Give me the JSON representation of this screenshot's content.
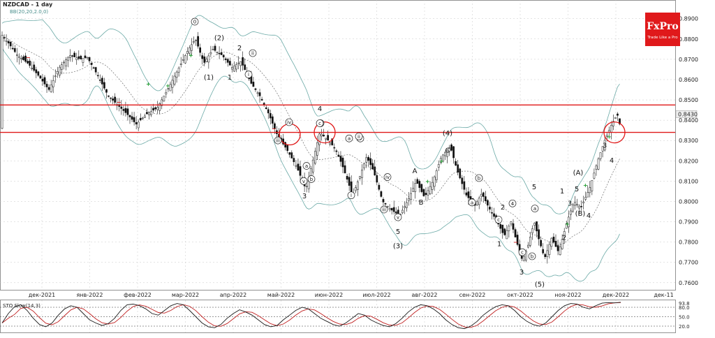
{
  "header": {
    "symbol_title": "NZDCAD - 1 day",
    "indicator_label": "BB(20,20,2.0,0)"
  },
  "logo": {
    "brand": "FxPro",
    "tagline": "Trade Like a Pro",
    "bg_color": "#e0191b"
  },
  "price_axis": {
    "ticks": [
      "0.8900",
      "0.8800",
      "0.8700",
      "0.8600",
      "0.8500",
      "0.8400",
      "0.8300",
      "0.8200",
      "0.8100",
      "0.8000",
      "0.7900",
      "0.7800",
      "0.7700",
      "0.7600"
    ],
    "current_price": "0.8430"
  },
  "time_axis": {
    "labels": [
      "дек-2021",
      "янв-2022",
      "фев-2022",
      "мар-2022",
      "апр-2022",
      "май-2022",
      "июн-2022",
      "июл-2022",
      "авг-2022",
      "сен-2022",
      "окт-2022",
      "ноя-2022",
      "дек-2022",
      "дек-11"
    ]
  },
  "stoch": {
    "label": "STO Slow(14,3)",
    "ticks": [
      "93.8",
      "80.0",
      "50.0",
      "20.0"
    ]
  },
  "colors": {
    "bull_marker": "#1a9a2a",
    "bear_marker": "#d32020",
    "level_line": "#e01818",
    "bollinger": "#6aa9a6",
    "grid": "#c8c8c8",
    "stoch_k": "#1a1a1a",
    "stoch_d": "#c02020"
  },
  "chart_data": {
    "type": "candlestick",
    "instrument": "NZDCAD",
    "timeframe": "1 day",
    "ylim": [
      0.7565,
      0.8985
    ],
    "horizontal_levels": [
      0.8475,
      0.834
    ],
    "circle_markers": [
      {
        "date": "май-2022",
        "price": 0.833
      },
      {
        "date": "май-2022 / июн-2022",
        "price": 0.834
      },
      {
        "date": "ноя-2022",
        "price": 0.834
      }
    ],
    "price_path": [
      [
        0,
        0.883
      ],
      [
        12,
        0.878
      ],
      [
        25,
        0.872
      ],
      [
        40,
        0.868
      ],
      [
        55,
        0.862
      ],
      [
        70,
        0.855
      ],
      [
        85,
        0.866
      ],
      [
        100,
        0.872
      ],
      [
        115,
        0.87
      ],
      [
        125,
        0.871
      ],
      [
        140,
        0.862
      ],
      [
        155,
        0.852
      ],
      [
        170,
        0.847
      ],
      [
        185,
        0.842
      ],
      [
        195,
        0.838
      ],
      [
        210,
        0.843
      ],
      [
        225,
        0.846
      ],
      [
        240,
        0.855
      ],
      [
        255,
        0.865
      ],
      [
        270,
        0.875
      ],
      [
        280,
        0.88
      ],
      [
        292,
        0.868
      ],
      [
        305,
        0.875
      ],
      [
        318,
        0.872
      ],
      [
        332,
        0.866
      ],
      [
        345,
        0.869
      ],
      [
        360,
        0.858
      ],
      [
        372,
        0.852
      ],
      [
        385,
        0.843
      ],
      [
        398,
        0.832
      ],
      [
        410,
        0.826
      ],
      [
        425,
        0.817
      ],
      [
        438,
        0.806
      ],
      [
        448,
        0.82
      ],
      [
        458,
        0.834
      ],
      [
        470,
        0.83
      ],
      [
        480,
        0.826
      ],
      [
        490,
        0.818
      ],
      [
        505,
        0.803
      ],
      [
        515,
        0.812
      ],
      [
        525,
        0.822
      ],
      [
        535,
        0.815
      ],
      [
        548,
        0.8
      ],
      [
        560,
        0.796
      ],
      [
        572,
        0.793
      ],
      [
        585,
        0.801
      ],
      [
        596,
        0.81
      ],
      [
        608,
        0.802
      ],
      [
        620,
        0.81
      ],
      [
        632,
        0.822
      ],
      [
        645,
        0.827
      ],
      [
        655,
        0.815
      ],
      [
        668,
        0.803
      ],
      [
        680,
        0.798
      ],
      [
        690,
        0.804
      ],
      [
        700,
        0.797
      ],
      [
        712,
        0.79
      ],
      [
        722,
        0.783
      ],
      [
        732,
        0.79
      ],
      [
        740,
        0.78
      ],
      [
        748,
        0.771
      ],
      [
        756,
        0.778
      ],
      [
        765,
        0.79
      ],
      [
        772,
        0.781
      ],
      [
        780,
        0.772
      ],
      [
        790,
        0.782
      ],
      [
        800,
        0.775
      ],
      [
        812,
        0.79
      ],
      [
        822,
        0.8
      ],
      [
        832,
        0.797
      ],
      [
        845,
        0.807
      ],
      [
        856,
        0.82
      ],
      [
        866,
        0.83
      ],
      [
        876,
        0.838
      ],
      [
        884,
        0.843
      ],
      [
        889,
        0.836
      ]
    ],
    "wave_labels": [
      "0",
      "(2)",
      "2",
      "(1)",
      "1",
      "ii",
      "i",
      "iii",
      "iv",
      "a",
      "b",
      "c",
      "v",
      "3",
      "4",
      "c",
      "a",
      "b",
      "iii",
      "iv",
      "ii",
      "i",
      "v",
      "5",
      "(3)",
      "A",
      "B",
      "(4)",
      "C",
      "b",
      "a",
      "c",
      "1",
      "2",
      "4",
      "a",
      "c",
      "b",
      "3",
      "5",
      "(5)",
      "1",
      "2",
      "3",
      "(A)",
      "(B)",
      "5",
      "4",
      "3",
      "4"
    ],
    "stochastic": {
      "name": "STO Slow(14,3)",
      "levels": [
        80,
        50,
        20
      ],
      "ylim": [
        0,
        100
      ],
      "k": [
        30,
        60,
        82,
        88,
        70,
        45,
        25,
        18,
        30,
        55,
        75,
        85,
        80,
        60,
        40,
        30,
        22,
        28,
        45,
        70,
        88,
        90,
        85,
        75,
        60,
        55,
        70,
        85,
        92,
        88,
        70,
        50,
        30,
        18,
        15,
        25,
        45,
        60,
        72,
        65,
        55,
        40,
        25,
        18,
        22,
        40,
        55,
        70,
        80,
        75,
        60,
        45,
        35,
        25,
        20,
        30,
        45,
        60,
        55,
        40,
        30,
        22,
        18,
        28,
        45,
        65,
        80,
        88,
        85,
        75,
        60,
        40,
        25,
        15,
        12,
        20,
        35,
        55,
        70,
        82,
        88,
        85,
        70,
        50,
        35,
        25,
        20,
        30,
        50,
        70,
        85,
        92,
        90,
        80,
        75,
        85,
        93,
        95,
        94,
        96
      ]
    }
  }
}
